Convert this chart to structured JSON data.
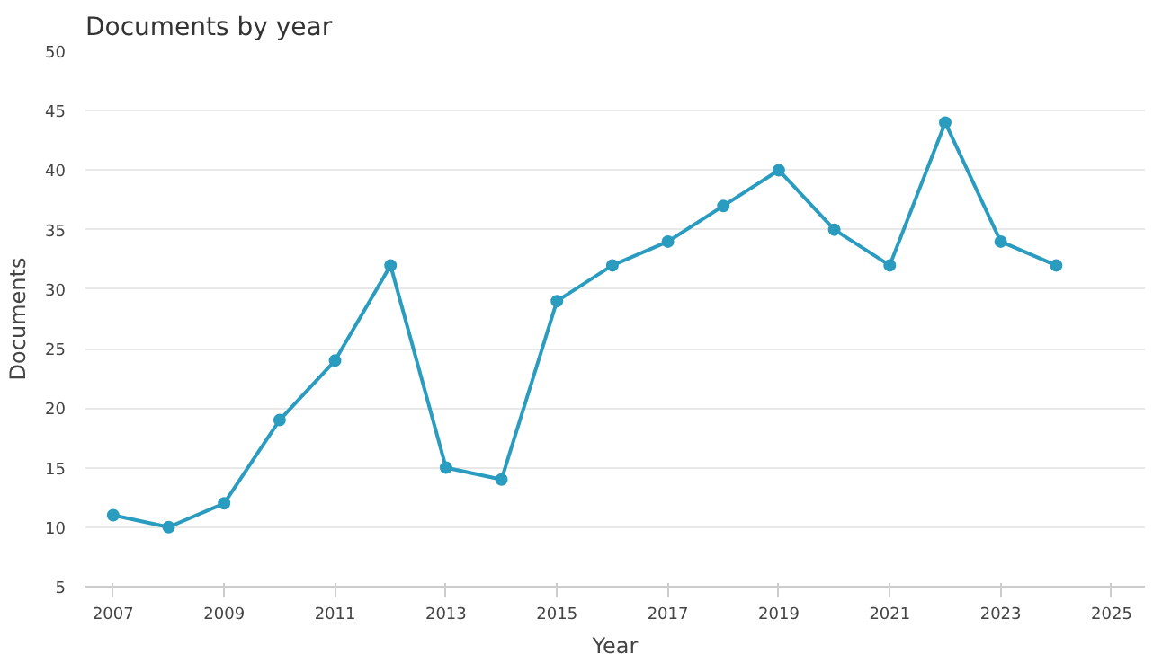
{
  "chart_data": {
    "type": "line",
    "title": "Documents by year",
    "xlabel": "Year",
    "ylabel": "Documents",
    "x": [
      2007,
      2008,
      2009,
      2010,
      2011,
      2012,
      2013,
      2014,
      2015,
      2016,
      2017,
      2018,
      2019,
      2020,
      2021,
      2022,
      2023,
      2024
    ],
    "series": [
      {
        "color": "#2a9cbf",
        "values": [
          11,
          10,
          12,
          19,
          24,
          32,
          15,
          14,
          29,
          32,
          34,
          37,
          40,
          35,
          32,
          44,
          34,
          32
        ]
      }
    ],
    "xlim": [
      2006.5,
      2025.6
    ],
    "xticks": [
      2007,
      2009,
      2011,
      2013,
      2015,
      2017,
      2019,
      2021,
      2023,
      2025
    ],
    "ylim": [
      5,
      50
    ],
    "yticks": [
      5,
      10,
      15,
      20,
      25,
      30,
      35,
      40,
      45,
      50
    ],
    "grid": "y",
    "marker": "circle",
    "line_style": "solid"
  }
}
